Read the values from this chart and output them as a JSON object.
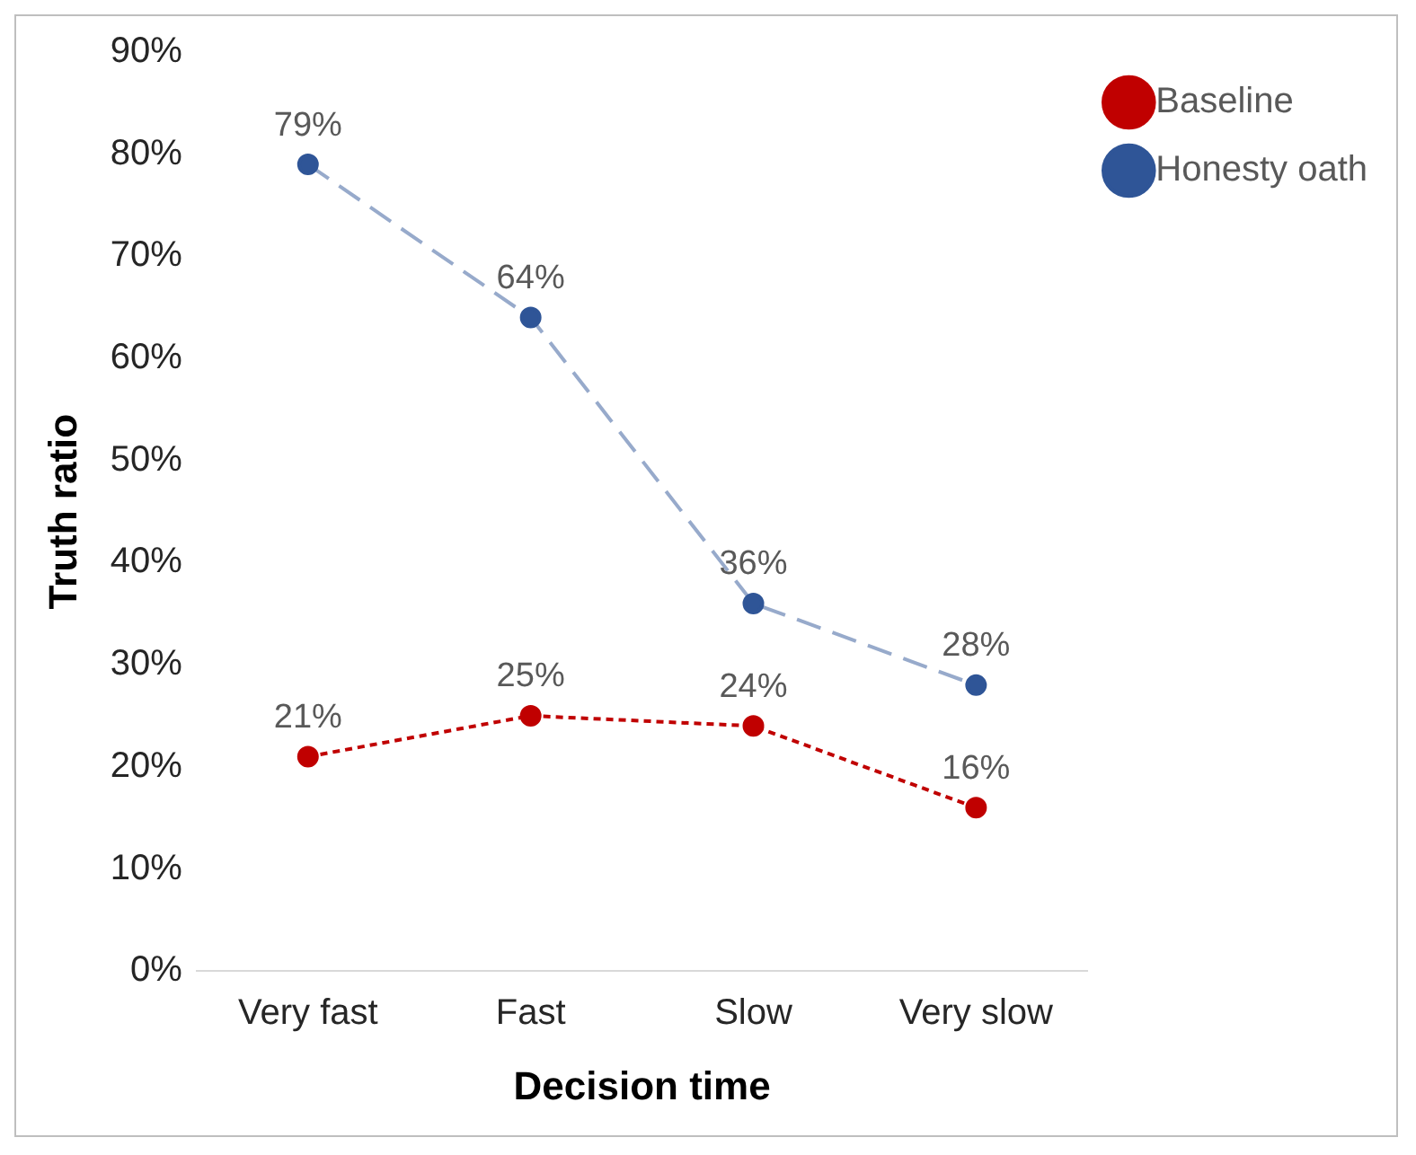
{
  "chart_data": {
    "type": "line",
    "xlabel": "Decision time",
    "ylabel": "Truth ratio",
    "categories": [
      "Very fast",
      "Fast",
      "Slow",
      "Very slow"
    ],
    "series": [
      {
        "name": "Baseline",
        "color": "#c00000",
        "values": [
          21,
          25,
          24,
          16
        ],
        "value_labels": [
          "21%",
          "25%",
          "24%",
          "16%"
        ]
      },
      {
        "name": "Honesty oath",
        "color": "#2f5597",
        "values": [
          79,
          64,
          36,
          28
        ],
        "value_labels": [
          "79%",
          "64%",
          "36%",
          "28%"
        ]
      }
    ],
    "ylim": [
      0,
      90
    ],
    "yticks": [
      {
        "value": 0,
        "label": "0%"
      },
      {
        "value": 10,
        "label": "10%"
      },
      {
        "value": 20,
        "label": "20%"
      },
      {
        "value": 30,
        "label": "30%"
      },
      {
        "value": 40,
        "label": "40%"
      },
      {
        "value": 50,
        "label": "50%"
      },
      {
        "value": 60,
        "label": "60%"
      },
      {
        "value": 70,
        "label": "70%"
      },
      {
        "value": 80,
        "label": "80%"
      },
      {
        "value": 90,
        "label": "90%"
      }
    ],
    "grid": false,
    "legend": "top right",
    "marker": "circle",
    "line_style": "dashed"
  }
}
